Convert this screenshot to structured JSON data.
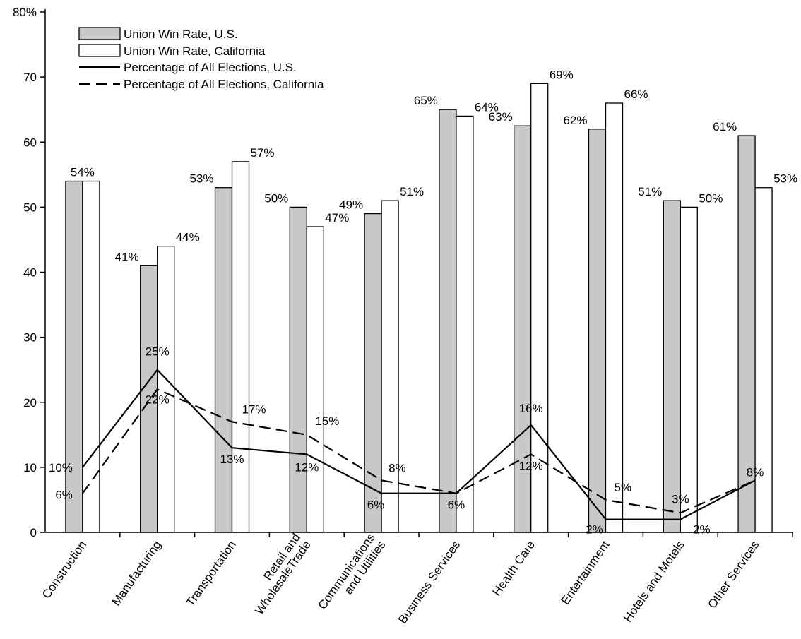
{
  "chart_data": {
    "type": "bar",
    "categories": [
      [
        "Construction"
      ],
      [
        "Manufacturing"
      ],
      [
        "Transportation"
      ],
      [
        "Retail and",
        "WholesaleTrade"
      ],
      [
        "Communications",
        "and Utilities"
      ],
      [
        "Business Services"
      ],
      [
        "Health Care"
      ],
      [
        "Entertainment"
      ],
      [
        "Hotels and Motels"
      ],
      [
        "Other Services"
      ]
    ],
    "ylim": [
      0,
      80
    ],
    "yticks": [
      0,
      10,
      20,
      30,
      40,
      50,
      60,
      70,
      80
    ],
    "ytick_labels": [
      "0",
      "10",
      "20",
      "30",
      "40",
      "50",
      "60",
      "70",
      "80%"
    ],
    "grid": false,
    "legend_position": "top-left",
    "bar_series": [
      {
        "name": "Union Win Rate, U.S.",
        "fill": "#c8c8c8",
        "values": [
          54,
          41,
          53,
          50,
          49,
          65,
          62.5,
          62,
          51,
          61
        ],
        "labels": [
          "54%",
          "41%",
          "53%",
          "50%",
          "49%",
          "65%",
          "63%",
          "62%",
          "51%",
          "61%"
        ]
      },
      {
        "name": "Union Win Rate, California",
        "fill": "#ffffff",
        "values": [
          54,
          44,
          57,
          47,
          51,
          64,
          69,
          66,
          50,
          53
        ],
        "labels": [
          "",
          "44%",
          "57%",
          "47%",
          "51%",
          "64%",
          "69%",
          "66%",
          "50%",
          "53%"
        ]
      }
    ],
    "line_series": [
      {
        "name": "Percentage of All Elections, U.S.",
        "dash": "solid",
        "values": [
          10,
          25,
          13,
          12,
          6,
          6,
          16.5,
          2,
          2,
          8
        ],
        "labels": [
          "10%",
          "25%",
          "13%",
          "12%",
          "6%",
          "6%",
          "16%",
          "2%",
          "2%",
          "8%"
        ]
      },
      {
        "name": "Percentage of All Elections, California",
        "dash": "dashed",
        "values": [
          6,
          22,
          17,
          15,
          8,
          6,
          12,
          5,
          3,
          8
        ],
        "labels": [
          "6%",
          "22%",
          "17%",
          "15%",
          "8%",
          "",
          "12%",
          "5%",
          "3%",
          ""
        ]
      }
    ]
  }
}
